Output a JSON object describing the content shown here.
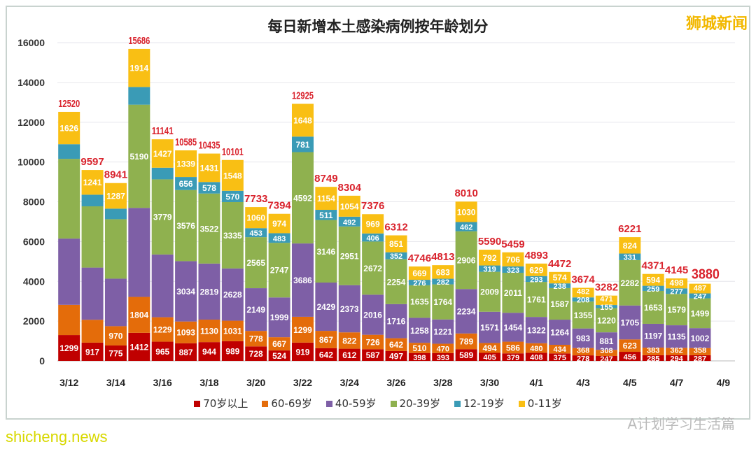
{
  "watermarks": {
    "top_right": "狮城新闻",
    "bottom_right": "A计划学习生活篇",
    "bottom_left": "shicheng.news"
  },
  "chart_data": {
    "type": "bar",
    "stacked": true,
    "title": "每日新增本土感染病例按年龄划分",
    "xlabel": "",
    "ylabel": "",
    "ylim": [
      0,
      16000
    ],
    "yticks": [
      0,
      2000,
      4000,
      6000,
      8000,
      10000,
      12000,
      14000,
      16000
    ],
    "grid": true,
    "legend": "bottom",
    "categories": [
      "3/12",
      "3/13",
      "3/14",
      "3/15",
      "3/16",
      "3/17",
      "3/18",
      "3/19",
      "3/20",
      "3/21",
      "3/22",
      "3/23",
      "3/24",
      "3/25",
      "3/26",
      "3/27",
      "3/28",
      "3/29",
      "3/30",
      "3/31",
      "4/1",
      "4/2",
      "4/3",
      "4/4",
      "4/5",
      "4/6",
      "4/7",
      "4/8",
      "4/9"
    ],
    "xtick_labels": [
      "3/12",
      "3/14",
      "3/16",
      "3/18",
      "3/20",
      "3/22",
      "3/24",
      "3/26",
      "3/28",
      "3/30",
      "4/1",
      "4/3",
      "4/5",
      "4/7",
      "4/9"
    ],
    "totals": [
      12520,
      9597,
      8941,
      15686,
      11141,
      10585,
      10435,
      10101,
      7733,
      7394,
      12925,
      8749,
      8304,
      7376,
      6312,
      4746,
      4813,
      8010,
      5590,
      5459,
      4893,
      4472,
      3674,
      3282,
      6221,
      4371,
      4145,
      3880,
      null
    ],
    "series": [
      {
        "name": "70岁以上",
        "color": "#c00000",
        "values": [
          1299,
          917,
          775,
          1412,
          965,
          887,
          944,
          989,
          728,
          524,
          919,
          642,
          612,
          587,
          497,
          398,
          393,
          589,
          405,
          379,
          408,
          375,
          278,
          247,
          456,
          285,
          294,
          287,
          null
        ]
      },
      {
        "name": "60-69岁",
        "color": "#e46c0a",
        "values": [
          1520,
          1149,
          970,
          1804,
          1229,
          1093,
          1130,
          1031,
          778,
          667,
          1299,
          867,
          822,
          726,
          642,
          510,
          470,
          789,
          494,
          586,
          480,
          434,
          368,
          308,
          623,
          383,
          362,
          358,
          null
        ]
      },
      {
        "name": "40-59岁",
        "color": "#7e5fa6",
        "values": [
          3330,
          2625,
          2389,
          4476,
          3155,
          3034,
          2819,
          2628,
          2149,
          1999,
          3686,
          2429,
          2373,
          2016,
          1716,
          1258,
          1221,
          2234,
          1571,
          1454,
          1322,
          1264,
          983,
          881,
          1705,
          1197,
          1135,
          1002,
          null
        ]
      },
      {
        "name": "20-39岁",
        "color": "#8fb14f",
        "values": [
          4010,
          3080,
          2990,
          5190,
          3779,
          3576,
          3522,
          3335,
          2565,
          2747,
          4592,
          3146,
          2951,
          2672,
          2254,
          1635,
          1764,
          2906,
          2009,
          2011,
          1761,
          1587,
          1355,
          1220,
          2282,
          1653,
          1579,
          1499,
          null
        ]
      },
      {
        "name": "12-19岁",
        "color": "#3a9bb6",
        "values": [
          735,
          585,
          530,
          890,
          586,
          656,
          578,
          570,
          453,
          483,
          781,
          511,
          492,
          406,
          352,
          276,
          282,
          462,
          319,
          323,
          293,
          238,
          208,
          155,
          331,
          259,
          277,
          247,
          null
        ]
      },
      {
        "name": "0-11岁",
        "color": "#f9bf14",
        "values": [
          1626,
          1241,
          1287,
          1914,
          1427,
          1339,
          1431,
          1548,
          1060,
          974,
          1648,
          1154,
          1054,
          969,
          851,
          669,
          683,
          1030,
          792,
          706,
          629,
          574,
          482,
          471,
          824,
          594,
          498,
          487,
          null
        ]
      }
    ]
  }
}
